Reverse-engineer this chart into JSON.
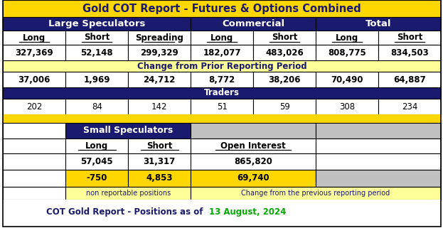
{
  "title": "Gold COT Report - Futures & Options Combined",
  "title_bg": "#FFD700",
  "title_color": "#1a1a6e",
  "header_bg": "#1a1a6e",
  "header_color": "#FFFFFF",
  "yellow_bg": "#FFFF99",
  "yellow_dark": "#FFD700",
  "white_bg": "#FFFFFF",
  "gray_bg": "#C0C0C0",
  "section_headers": [
    "Large Speculators",
    "Commercial",
    "Total"
  ],
  "col_headers": [
    "Long",
    "Short",
    "Spreading",
    "Long",
    "Short",
    "Long",
    "Short"
  ],
  "row1_values": [
    "327,369",
    "52,148",
    "299,329",
    "182,077",
    "483,026",
    "808,775",
    "834,503"
  ],
  "change_label": "Change from Prior Reporting Period",
  "row2_values": [
    "37,006",
    "1,969",
    "24,712",
    "8,772",
    "38,206",
    "70,490",
    "64,887"
  ],
  "traders_label": "Traders",
  "row3_values": [
    "202",
    "84",
    "142",
    "51",
    "59",
    "308",
    "234"
  ],
  "small_spec_label": "Small Speculators",
  "small_col_headers": [
    "Long",
    "Short",
    "Open Interest"
  ],
  "small_row1": [
    "57,045",
    "31,317",
    "865,820"
  ],
  "small_row2": [
    "-750",
    "4,853",
    "69,740"
  ],
  "footnote_left": "non reportable positions",
  "footnote_right": "Change from the previous reporting period",
  "footer_prefix": "COT Gold Report - Positions as of  ",
  "footer_date": "13 August, 2024",
  "footer_date_color": "#00AA00"
}
